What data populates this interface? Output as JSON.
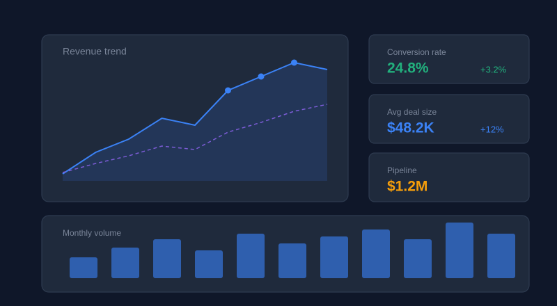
{
  "revenue_trend": {
    "type": "line",
    "title": "Revenue trend",
    "categories": [
      null,
      null,
      null,
      null,
      null,
      null,
      null,
      null,
      null
    ],
    "series": [
      {
        "color": "#3b82f6",
        "style": "solid",
        "area": true,
        "marker_indices": [
          5,
          6,
          7
        ],
        "values": [
          10,
          41,
          60,
          90,
          80,
          130,
          150,
          170,
          160
        ]
      },
      {
        "color": "#7c5cd6",
        "style": "dashed",
        "values": [
          12,
          25,
          36,
          50,
          45,
          70,
          84,
          100,
          110
        ]
      }
    ],
    "ylim": [
      0,
      180
    ]
  },
  "kpis": [
    {
      "label": "Conversion rate",
      "value": "24.8%",
      "delta": "+3.2%",
      "color": "#22b07d"
    },
    {
      "label": "Avg deal size",
      "value": "$48.2K",
      "delta": "+12%",
      "color": "#3b82f6"
    },
    {
      "label": "Pipeline",
      "value": "$1.2M",
      "color": "#f59e0b"
    }
  ],
  "monthly_volume": {
    "type": "bar",
    "title": "Monthly volume",
    "color": "#2f5fae",
    "categories": [
      null,
      null,
      null,
      null,
      null,
      null,
      null,
      null,
      null,
      null,
      null
    ],
    "values": [
      30,
      44,
      56,
      40,
      64,
      50,
      60,
      70,
      56,
      80,
      64
    ],
    "ylim": [
      0,
      80
    ]
  }
}
